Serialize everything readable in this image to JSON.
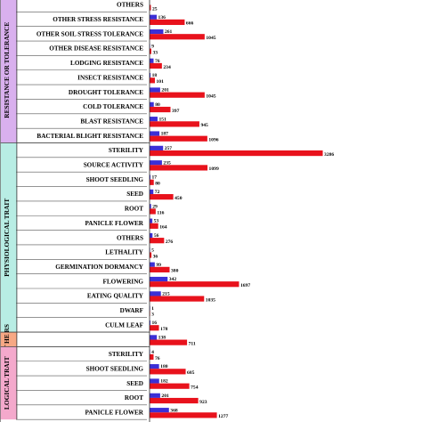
{
  "chart_data": {
    "type": "bar",
    "orientation": "horizontal",
    "colors": {
      "series_blue": "#3b2fd6",
      "series_red": "#e8121c",
      "group_resistance": "#d9b0ee",
      "group_physiological": "#b8ede4",
      "group_others": "#f7a884",
      "group_morphological": "#f4a9cc"
    },
    "groups": [
      {
        "label": "RESISTANCE OR TOLERANCE",
        "color_key": "group_resistance",
        "rows": [
          {
            "label": "OTHERS",
            "blue": null,
            "red": 25
          },
          {
            "label": "OTHER STRESS RESISTANCE",
            "blue": 136,
            "red": 666
          },
          {
            "label": "OTHER SOIL STRESS TOLERANCE",
            "blue": 261,
            "red": 1045
          },
          {
            "label": "OTHER DISEASE RESISTANCE",
            "blue": 9,
            "red": 33
          },
          {
            "label": "LODGING RESISTANCE",
            "blue": 76,
            "red": 234
          },
          {
            "label": "INSECT RESISTANCE",
            "blue": 18,
            "red": 101
          },
          {
            "label": "DROUGHT TOLERANCE",
            "blue": 201,
            "red": 1045
          },
          {
            "label": "COLD TOLERANCE",
            "blue": 80,
            "red": 397
          },
          {
            "label": "BLAST RESISTANCE",
            "blue": 151,
            "red": 945
          },
          {
            "label": "BACTERIAL BLIGHT RESISTANCE",
            "blue": 187,
            "red": 1096
          }
        ]
      },
      {
        "label": "PHYSIOLOGICAL TRAIT",
        "color_key": "group_physiological",
        "rows": [
          {
            "label": "STERILITY",
            "blue": 257,
            "red": 3286
          },
          {
            "label": "SOURCE ACTIVITY",
            "blue": 235,
            "red": 1099
          },
          {
            "label": "SHOOT SEEDLING",
            "blue": 17,
            "red": 80
          },
          {
            "label": "SEED",
            "blue": 72,
            "red": 450
          },
          {
            "label": "ROOT",
            "blue": 29,
            "red": 116
          },
          {
            "label": "PANICLE FLOWER",
            "blue": 53,
            "red": 164
          },
          {
            "label": "OTHERS",
            "blue": 56,
            "red": 276
          },
          {
            "label": "LETHALITY",
            "blue": 5,
            "red": 36
          },
          {
            "label": "GERMINATION DORMANCY",
            "blue": 99,
            "red": 380
          },
          {
            "label": "FLOWERING",
            "blue": 342,
            "red": 1697
          },
          {
            "label": "EATING QUALITY",
            "blue": 215,
            "red": 1035
          },
          {
            "label": "DWARF",
            "blue": 1,
            "red": 3
          },
          {
            "label": "CULM LEAF",
            "blue": 16,
            "red": 178
          }
        ]
      },
      {
        "label": "OT HE RS",
        "color_key": "group_others",
        "rows": [
          {
            "label": "",
            "blue": 138,
            "red": 711
          }
        ]
      },
      {
        "label": "LOGICAL TRAIT",
        "color_key": "group_morphological",
        "rows": [
          {
            "label": "STERILITY",
            "blue": 4,
            "red": 76
          },
          {
            "label": "SHOOT SEEDLING",
            "blue": 180,
            "red": 685
          },
          {
            "label": "SEED",
            "blue": 182,
            "red": 754
          },
          {
            "label": "ROOT",
            "blue": 201,
            "red": 923
          },
          {
            "label": "PANICLE FLOWER",
            "blue": 368,
            "red": 1277
          }
        ]
      }
    ]
  }
}
